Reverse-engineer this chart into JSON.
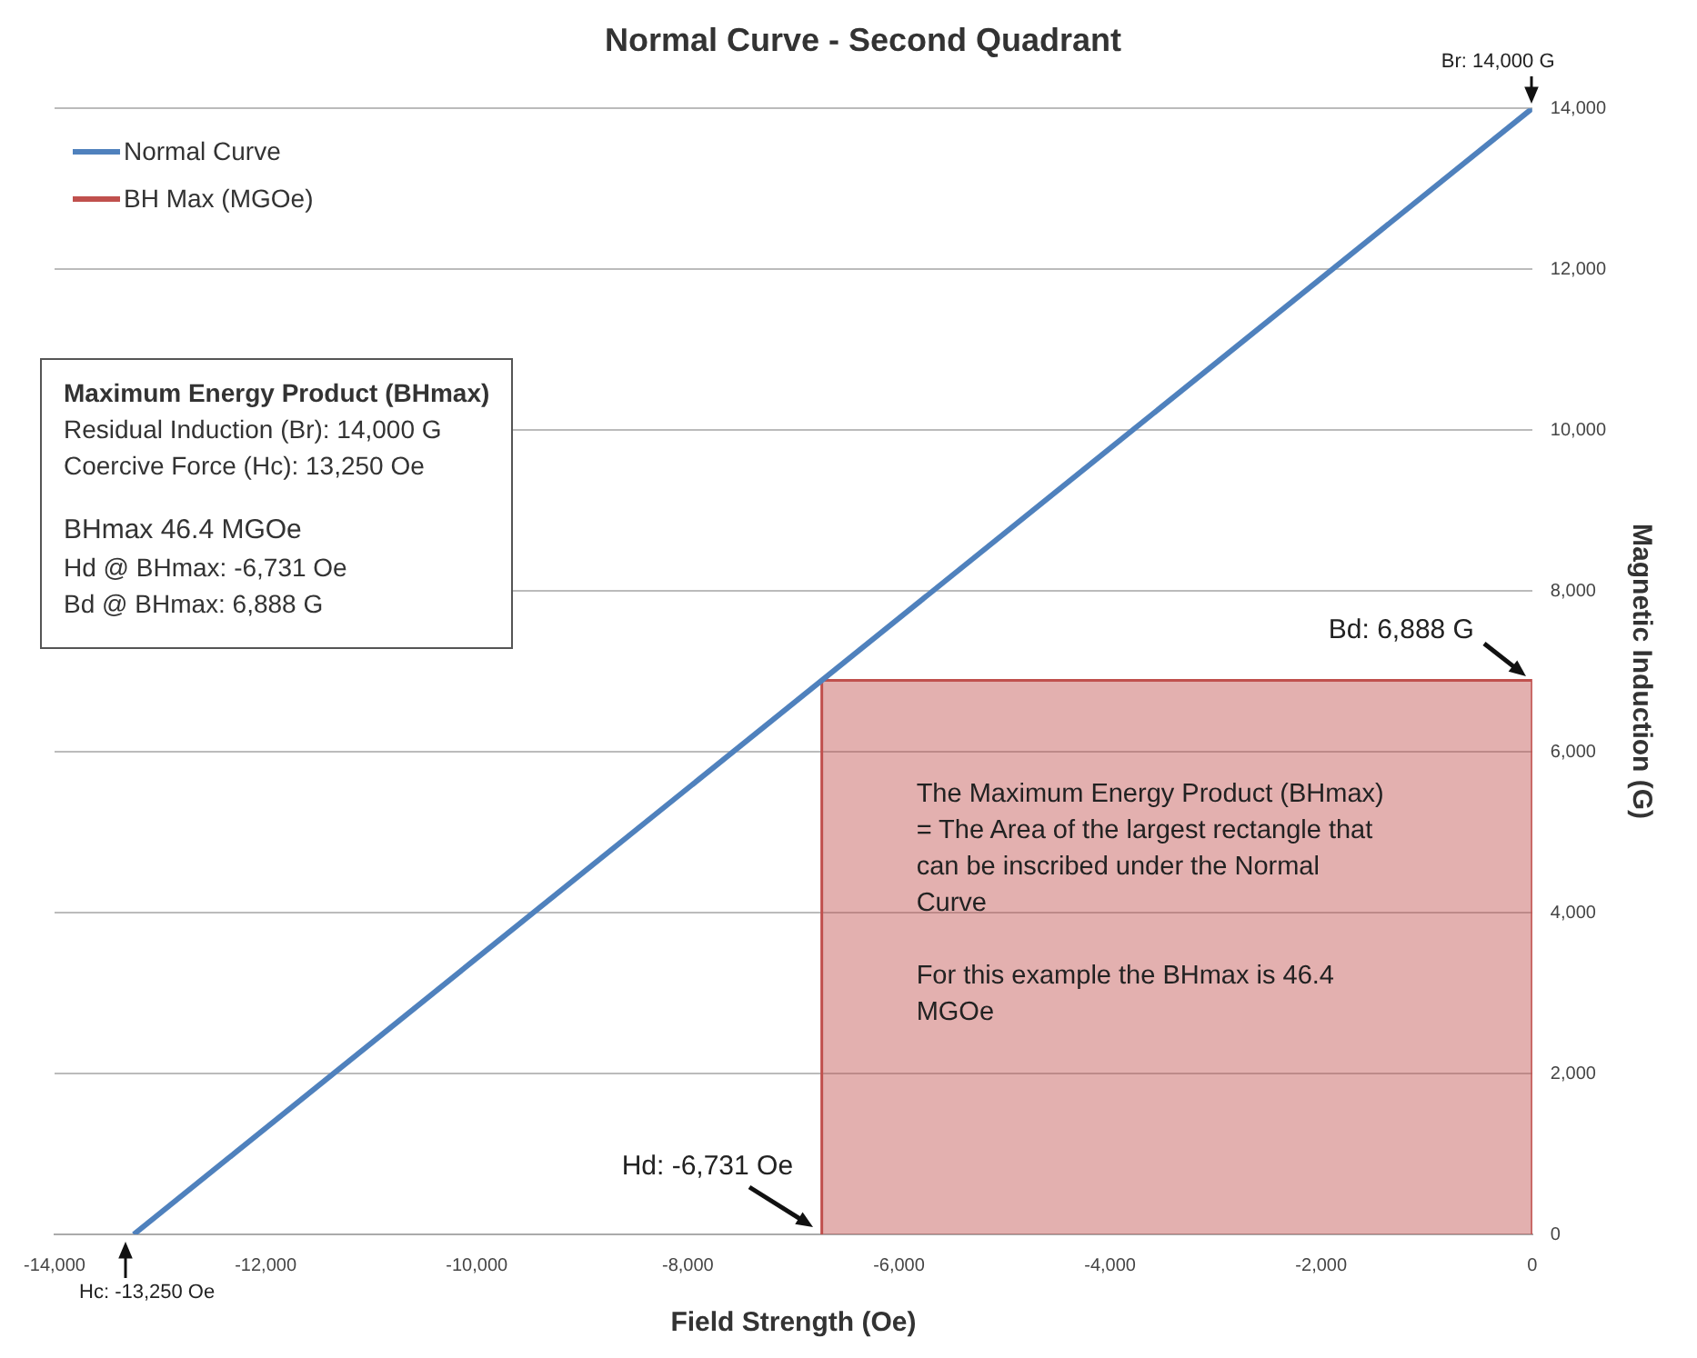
{
  "chart_data": {
    "type": "line",
    "title": "Normal Curve - Second Quadrant",
    "xlabel": "Field Strength (Oe)",
    "ylabel": "Magnetic Induction (G)",
    "series": [
      {
        "name": "Normal Curve",
        "type": "line",
        "color": "#4f81bd",
        "x": [
          -13250,
          0
        ],
        "values": [
          0,
          14000
        ]
      },
      {
        "name": "BH Max (MGOe)",
        "type": "area",
        "color": "#c0504d",
        "x": [
          -6731,
          -6731,
          0,
          0
        ],
        "values": [
          0,
          6888,
          6888,
          0
        ]
      }
    ],
    "xlim": [
      -14000,
      0
    ],
    "xticks": [
      {
        "value": -14000,
        "label": "-14,000"
      },
      {
        "value": -12000,
        "label": "-12,000"
      },
      {
        "value": -10000,
        "label": "-10,000"
      },
      {
        "value": -8000,
        "label": "-8,000"
      },
      {
        "value": -6000,
        "label": "-6,000"
      },
      {
        "value": -4000,
        "label": "-4,000"
      },
      {
        "value": -2000,
        "label": "-2,000"
      },
      0
    ],
    "ylim": [
      0,
      14000
    ],
    "yticks": [
      0,
      {
        "value": 2000,
        "label": "2,000"
      },
      {
        "value": 4000,
        "label": "4,000"
      },
      {
        "value": 6000,
        "label": "6,000"
      },
      {
        "value": 8000,
        "label": "8,000"
      },
      {
        "value": 10000,
        "label": "10,000"
      },
      {
        "value": 12000,
        "label": "12,000"
      },
      {
        "value": 14000,
        "label": "14,000"
      }
    ],
    "grid": "y",
    "legend": "top left",
    "marker": "none",
    "annotations": [
      {
        "text": "Br: 14,000 G",
        "x": 0,
        "y": 14000
      },
      {
        "text": "Bd: 6,888 G",
        "x": 0,
        "y": 6888
      },
      {
        "text": "Hd: -6,731 Oe",
        "x": -6731,
        "y": 0
      },
      {
        "text": "Hc: -13,250 Oe",
        "x": -13250,
        "y": 0
      },
      "Maximum Energy Product (BHmax)",
      "Residual Induction (Br): 14,000 G",
      "Coercive Force (Hc): 13,250 Oe",
      "BHmax 46.4 MGOe",
      "Hd @ BHmax: -6,731 Oe",
      "Bd @ BHmax: 6,888 G",
      "The Maximum Energy Product (BHmax) = The Area of the largest rectangle that can be inscribed under the Normal Curve",
      "For this example the BHmax is 46.4 MGOe"
    ]
  }
}
